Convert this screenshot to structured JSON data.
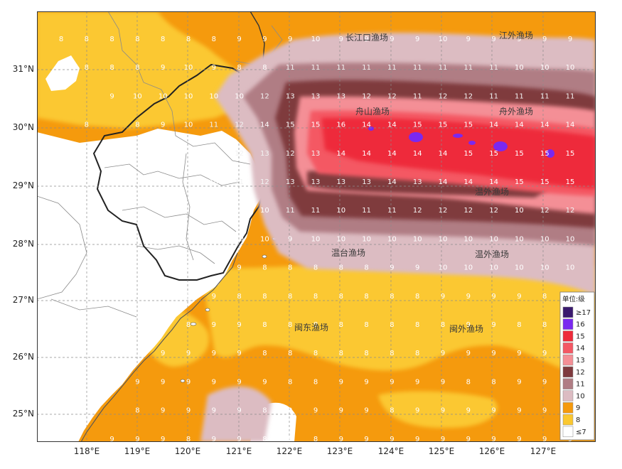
{
  "map": {
    "lat_ticks": [
      "31°N",
      "30°N",
      "29°N",
      "28°N",
      "27°N",
      "26°N",
      "25°N"
    ],
    "lon_ticks": [
      "118°E",
      "119°E",
      "120°E",
      "121°E",
      "122°E",
      "123°E",
      "124°E",
      "125°E",
      "126°E",
      "127°E"
    ],
    "fishing_grounds": [
      {
        "label": "长江口渔场"
      },
      {
        "label": "江外渔场"
      },
      {
        "label": "舟山渔场"
      },
      {
        "label": "舟外渔场"
      },
      {
        "label": "温外渔场"
      },
      {
        "label": "温台渔场"
      },
      {
        "label": "温外渔场"
      },
      {
        "label": "闽东渔场"
      },
      {
        "label": "闽外渔场"
      }
    ],
    "legend": {
      "title": "单位:级",
      "items": [
        {
          "label": "≥17",
          "color": "#3a1a6e"
        },
        {
          "label": "16",
          "color": "#7a28f0"
        },
        {
          "label": "15",
          "color": "#ee2b3a"
        },
        {
          "label": "14",
          "color": "#f45864"
        },
        {
          "label": "13",
          "color": "#f48f96"
        },
        {
          "label": "12",
          "color": "#7f3a3e"
        },
        {
          "label": "11",
          "color": "#b07d84"
        },
        {
          "label": "10",
          "color": "#dcbcc2"
        },
        {
          "label": "9",
          "color": "#f59a0d"
        },
        {
          "label": "8",
          "color": "#fbc830"
        },
        {
          "label": "≤7",
          "color": "#ffffff"
        }
      ]
    },
    "grid_values": [
      [
        "8",
        "8",
        "8",
        "8",
        "8",
        "8",
        "8",
        "9",
        "9",
        "9",
        "10",
        "9",
        "9",
        "9",
        "9",
        "10",
        "9",
        "9",
        "9",
        "9",
        "9"
      ],
      [
        "",
        "8",
        "8",
        "8",
        "9",
        "10",
        "9",
        "8",
        "8",
        "11",
        "11",
        "11",
        "11",
        "11",
        "11",
        "11",
        "11",
        "11",
        "10",
        "10",
        "10"
      ],
      [
        "",
        "",
        "9",
        "10",
        "10",
        "10",
        "10",
        "10",
        "12",
        "13",
        "13",
        "13",
        "12",
        "12",
        "11",
        "12",
        "12",
        "11",
        "11",
        "11",
        "11"
      ],
      [
        "",
        "8",
        "",
        "8",
        "9",
        "10",
        "11",
        "12",
        "14",
        "15",
        "15",
        "16",
        "14",
        "14",
        "15",
        "15",
        "15",
        "14",
        "14",
        "14",
        "14"
      ],
      [
        "",
        "",
        "",
        "",
        "",
        "",
        "10",
        "12",
        "13",
        "12",
        "13",
        "14",
        "14",
        "14",
        "14",
        "14",
        "15",
        "15",
        "15",
        "15",
        "15"
      ],
      [
        "",
        "",
        "",
        "",
        "",
        "",
        "10",
        "11",
        "12",
        "13",
        "13",
        "13",
        "13",
        "14",
        "13",
        "14",
        "14",
        "14",
        "15",
        "15",
        "15"
      ],
      [
        "",
        "",
        "",
        "",
        "",
        "",
        "8",
        "10",
        "10",
        "11",
        "11",
        "10",
        "11",
        "11",
        "12",
        "12",
        "12",
        "12",
        "10",
        "12",
        "12"
      ],
      [
        "",
        "",
        "",
        "",
        "",
        "",
        "",
        "10",
        "10",
        "9",
        "10",
        "10",
        "10",
        "10",
        "10",
        "10",
        "10",
        "10",
        "10",
        "10",
        "10"
      ],
      [
        "",
        "",
        "",
        "",
        "",
        "9",
        "9",
        "9",
        "8",
        "8",
        "8",
        "8",
        "8",
        "9",
        "9",
        "10",
        "10",
        "10",
        "10",
        "10",
        "10"
      ],
      [
        "",
        "",
        "",
        "",
        "8",
        "9",
        "9",
        "8",
        "8",
        "8",
        "8",
        "8",
        "8",
        "8",
        "8",
        "9",
        "9",
        "9",
        "9",
        "8",
        "9"
      ],
      [
        "",
        "",
        "",
        "",
        "9",
        "8",
        "9",
        "9",
        "8",
        "8",
        "8",
        "8",
        "8",
        "8",
        "8",
        "8",
        "9",
        "9",
        "8",
        "8",
        "8"
      ],
      [
        "",
        "",
        "",
        "",
        "9",
        "9",
        "9",
        "9",
        "8",
        "8",
        "8",
        "8",
        "8",
        "8",
        "8",
        "9",
        "9",
        "9",
        "9",
        "9",
        "9"
      ],
      [
        "",
        "",
        "",
        "9",
        "9",
        "9",
        "9",
        "9",
        "9",
        "8",
        "8",
        "9",
        "9",
        "9",
        "9",
        "9",
        "8",
        "8",
        "9",
        "9",
        "9"
      ],
      [
        "",
        "",
        "",
        "8",
        "9",
        "9",
        "9",
        "9",
        "8",
        "9",
        "9",
        "9",
        "9",
        "8",
        "9",
        "9",
        "9",
        "9",
        "9",
        "9",
        "9"
      ],
      [
        "",
        "",
        "9",
        "9",
        "9",
        "8",
        "9",
        "9",
        "8",
        "8",
        "8",
        "9",
        "9",
        "9",
        "9",
        "9",
        "9",
        "9",
        "9",
        "9",
        "9"
      ]
    ]
  }
}
